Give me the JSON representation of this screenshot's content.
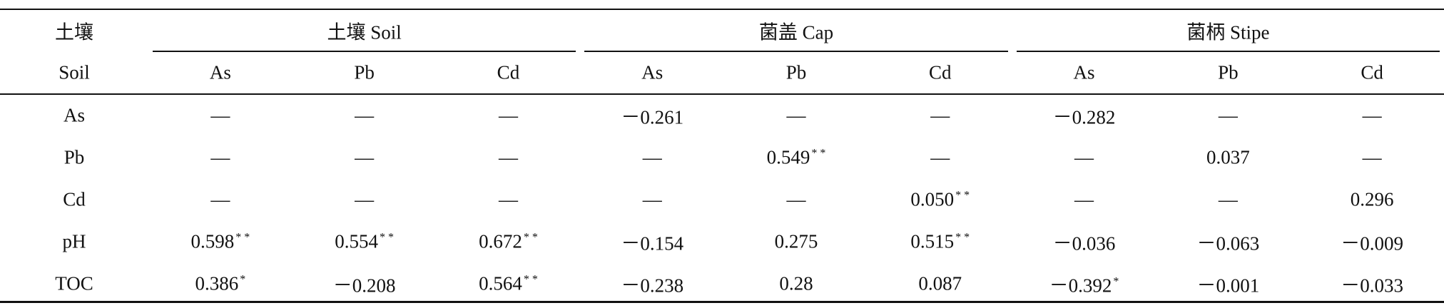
{
  "table": {
    "corner": [
      "土壤",
      "Soil"
    ],
    "groups": [
      "土壤 Soil",
      "菌盖 Cap",
      "菌柄 Stipe"
    ],
    "columns": [
      "As",
      "Pb",
      "Cd",
      "As",
      "Pb",
      "Cd",
      "As",
      "Pb",
      "Cd"
    ],
    "rows": [
      {
        "label": "As",
        "cells": [
          "—",
          "—",
          "—",
          "－0.261",
          "—",
          "—",
          "－0.282",
          "—",
          "—"
        ]
      },
      {
        "label": "Pb",
        "cells": [
          "—",
          "—",
          "—",
          "—",
          {
            "text": "0.549",
            "sup": "* *"
          },
          "—",
          "—",
          "0.037",
          "—"
        ]
      },
      {
        "label": "Cd",
        "cells": [
          "—",
          "—",
          "—",
          "—",
          "—",
          {
            "text": "0.050",
            "sup": "* *"
          },
          "—",
          "—",
          "0.296"
        ]
      },
      {
        "label": "pH",
        "cells": [
          {
            "text": "0.598",
            "sup": "* *"
          },
          {
            "text": "0.554",
            "sup": "* *"
          },
          {
            "text": "0.672",
            "sup": "* *"
          },
          "－0.154",
          "0.275",
          {
            "text": "0.515",
            "sup": "* *"
          },
          "－0.036",
          "－0.063",
          "－0.009"
        ]
      },
      {
        "label": "TOC",
        "cells": [
          {
            "text": "0.386",
            "sup": "*"
          },
          "－0.208",
          {
            "text": "0.564",
            "sup": "* *"
          },
          "－0.238",
          "0.28",
          "0.087",
          {
            "text": "－0.392",
            "sup": "*"
          },
          "－0.001",
          "－0.033"
        ]
      }
    ]
  }
}
